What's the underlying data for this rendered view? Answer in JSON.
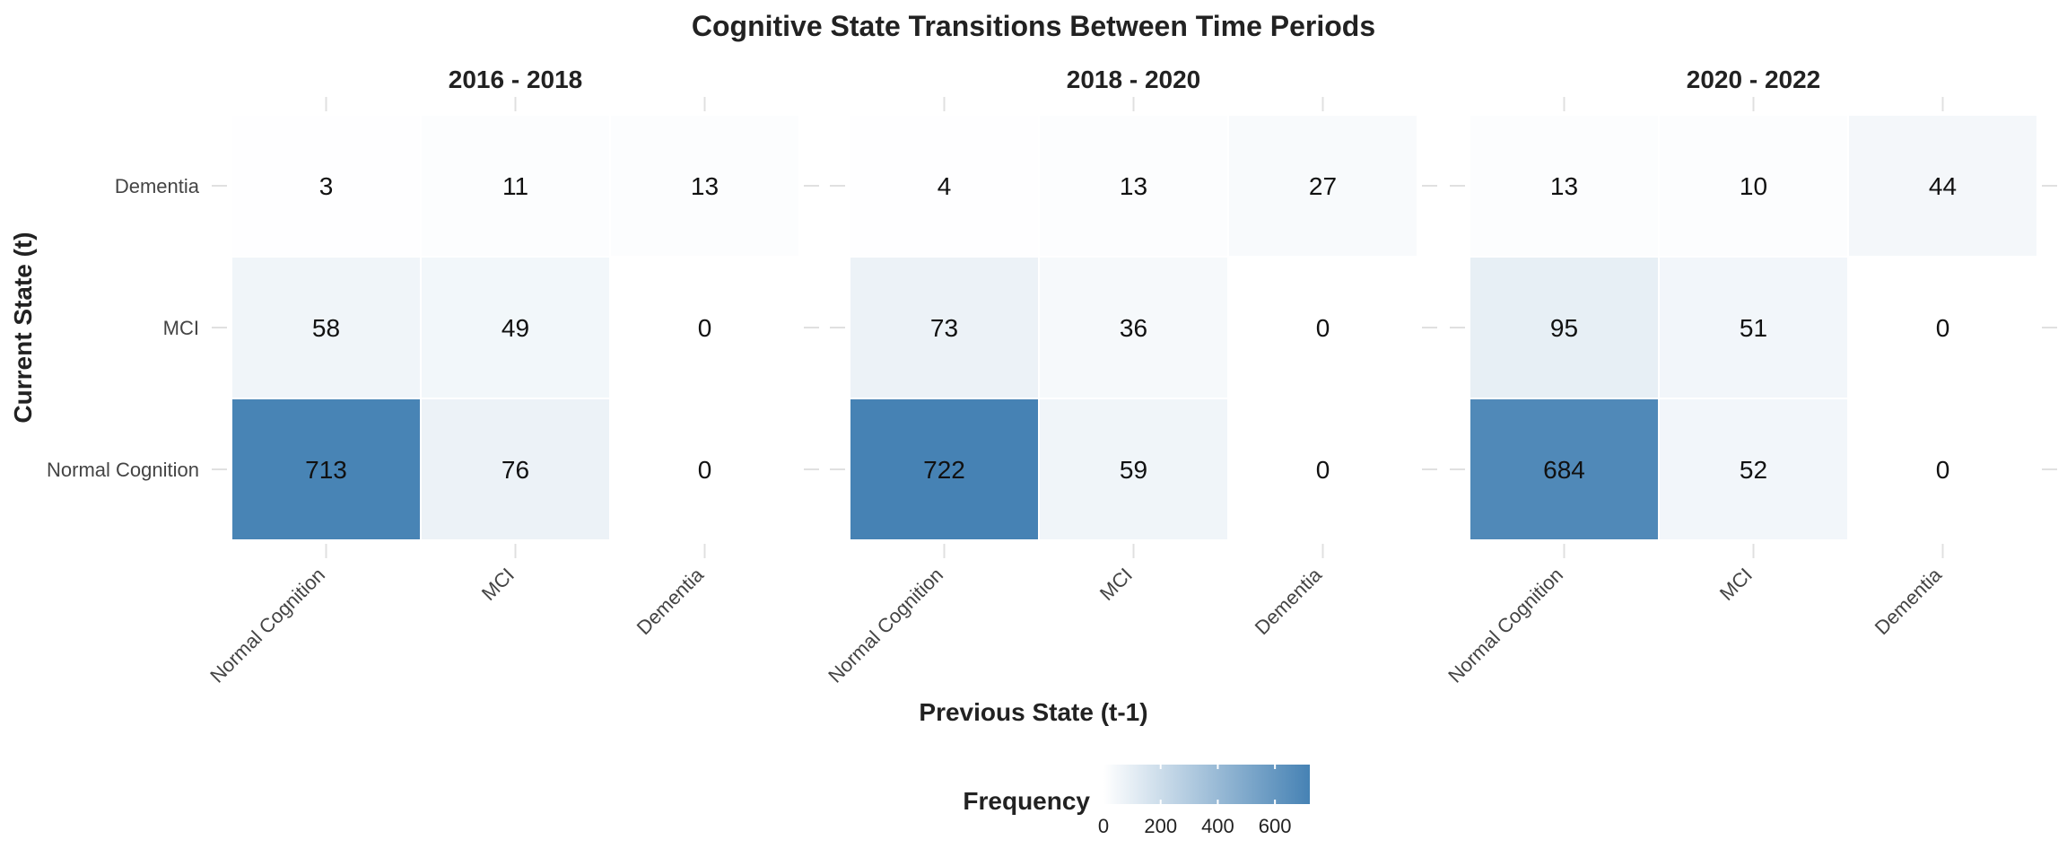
{
  "chart_data": {
    "type": "heatmap",
    "title": "Cognitive State Transitions Between Time Periods",
    "xlabel": "Previous State (t-1)",
    "ylabel": "Current State (t)",
    "x_categories": [
      "Normal Cognition",
      "MCI",
      "Dementia"
    ],
    "y_categories": [
      "Normal Cognition",
      "MCI",
      "Dementia"
    ],
    "facets": [
      {
        "label": "2016 - 2018",
        "values": [
          [
            713,
            76,
            0
          ],
          [
            58,
            49,
            0
          ],
          [
            3,
            11,
            13
          ]
        ]
      },
      {
        "label": "2018 - 2020",
        "values": [
          [
            722,
            59,
            0
          ],
          [
            73,
            36,
            0
          ],
          [
            4,
            13,
            27
          ]
        ]
      },
      {
        "label": "2020 - 2022",
        "values": [
          [
            684,
            52,
            0
          ],
          [
            95,
            51,
            0
          ],
          [
            13,
            10,
            44
          ]
        ]
      }
    ],
    "legend": {
      "title": "Frequency",
      "ticks": [
        0,
        200,
        400,
        600
      ],
      "range": [
        0,
        722
      ],
      "position": "bottom"
    },
    "colors": {
      "low": "#ffffff",
      "high": "#4682b4"
    },
    "grid": true
  }
}
